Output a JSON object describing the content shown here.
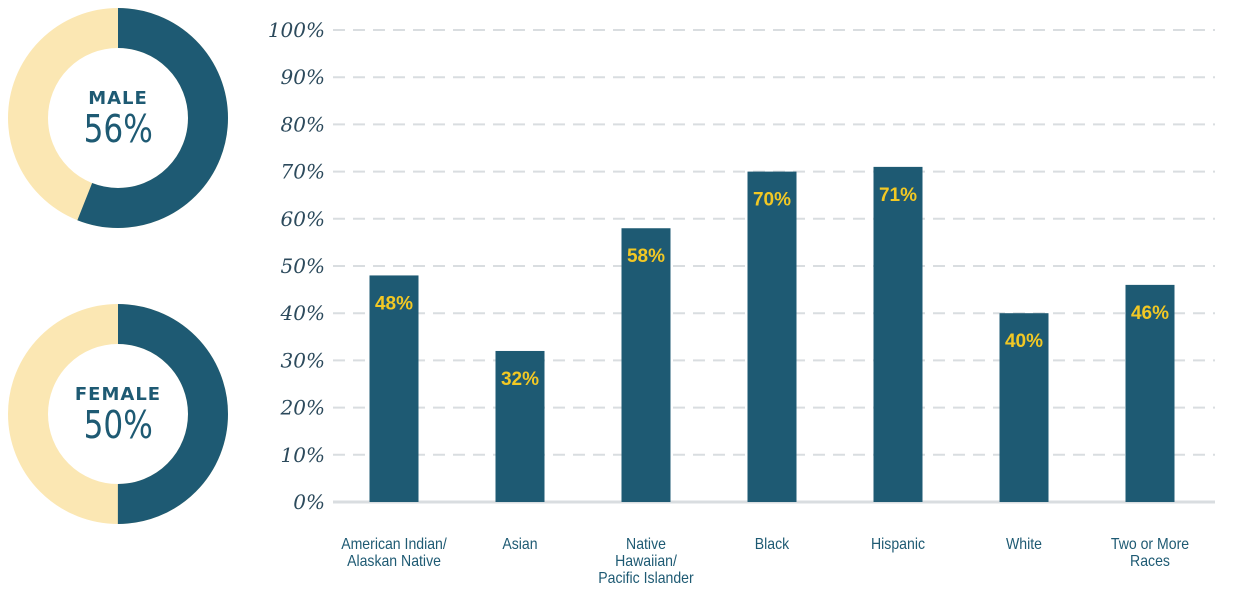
{
  "colors": {
    "bar": "#1e5a73",
    "donut_fill": "#1e5a73",
    "donut_track": "#fbe7b3",
    "bar_label": "#f2c824",
    "tick_label": "#2c4a5c",
    "grid": "#d9dde0",
    "baseline": "#d9dde0"
  },
  "donuts": [
    {
      "title": "MALE",
      "value_label": "56%",
      "value": 56
    },
    {
      "title": "FEMALE",
      "value_label": "50%",
      "value": 50
    }
  ],
  "chart_data": {
    "type": "bar",
    "title": "",
    "xlabel": "",
    "ylabel": "",
    "ylim": [
      0,
      100
    ],
    "yticks": [
      0,
      10,
      20,
      30,
      40,
      50,
      60,
      70,
      80,
      90,
      100
    ],
    "ytick_labels": [
      "0%",
      "10%",
      "20%",
      "30%",
      "40%",
      "50%",
      "60%",
      "70%",
      "80%",
      "90%",
      "100%"
    ],
    "grid": true,
    "categories": [
      [
        "American Indian/",
        "Alaskan Native"
      ],
      [
        "Asian"
      ],
      [
        "Native",
        "Hawaiian/",
        "Pacific Islander"
      ],
      [
        "Black"
      ],
      [
        "Hispanic"
      ],
      [
        "White"
      ],
      [
        "Two or More",
        "Races"
      ]
    ],
    "values": [
      48,
      32,
      58,
      70,
      71,
      40,
      46
    ],
    "value_labels": [
      "48%",
      "32%",
      "58%",
      "70%",
      "71%",
      "40%",
      "46%"
    ]
  }
}
